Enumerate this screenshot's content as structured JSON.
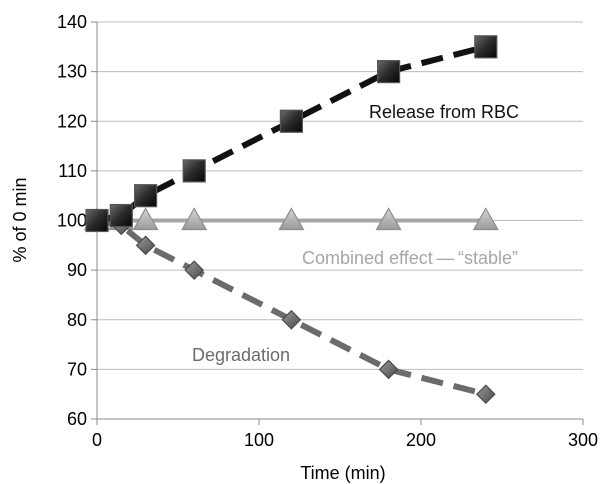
{
  "chart_data": {
    "type": "line",
    "title": "",
    "xlabel": "Time (min)",
    "ylabel": "% of 0 min",
    "xlim": [
      0,
      300
    ],
    "ylim": [
      60,
      140
    ],
    "xticks": [
      0,
      100,
      200,
      300
    ],
    "yticks": [
      60,
      70,
      80,
      90,
      100,
      110,
      120,
      130,
      140
    ],
    "grid": "horizontal",
    "legend": "none",
    "series": [
      {
        "name": "Release from RBC",
        "color": "#111111",
        "line_style": "dashed",
        "marker": "square",
        "x": [
          0,
          15,
          30,
          60,
          120,
          180,
          240
        ],
        "y": [
          100,
          101,
          105,
          110,
          120,
          130,
          135
        ]
      },
      {
        "name": "Combined effect — “stable”",
        "color": "#a6a6a6",
        "line_style": "solid",
        "marker": "triangle",
        "x": [
          0,
          15,
          30,
          60,
          120,
          180,
          240
        ],
        "y": [
          100,
          100,
          100,
          100,
          100,
          100,
          100
        ]
      },
      {
        "name": "Degradation",
        "color": "#6b6b6b",
        "line_style": "dashed",
        "marker": "diamond",
        "x": [
          0,
          15,
          30,
          60,
          120,
          180,
          240
        ],
        "y": [
          100,
          99,
          95,
          90,
          80,
          70,
          65
        ]
      }
    ],
    "annotations": [
      {
        "text": "Release from RBC",
        "color": "#111111"
      },
      {
        "text": "Combined effect — “stable”",
        "color": "#a6a6a6"
      },
      {
        "text": "Degradation",
        "color": "#6b6b6b"
      }
    ]
  }
}
